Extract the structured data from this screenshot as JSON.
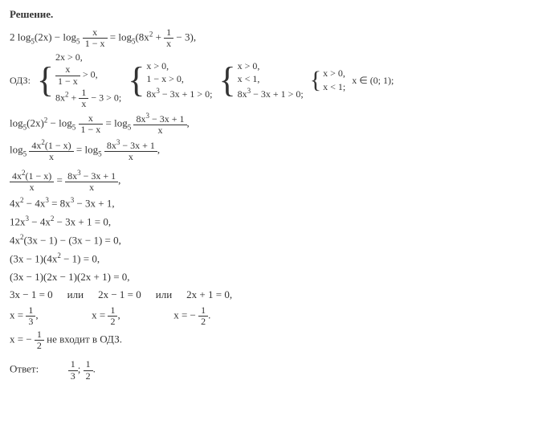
{
  "heading": "Решение.",
  "eq1_lhs1": "2 log",
  "eq1_sub": "5",
  "eq1_paren1": "(2x) − log",
  "eq1_frac1_num": "x",
  "eq1_frac1_den": "1 − x",
  "eq1_eq": " = log",
  "eq1_paren2_a": "(8x",
  "eq1_sup2": "2",
  "eq1_plus": " + ",
  "eq1_frac2_num": "1",
  "eq1_frac2_den": "x",
  "eq1_tail": " − 3),",
  "odz_label": "ОДЗ:",
  "odz1_r1": "2x > 0,",
  "odz1_r2_num": "x",
  "odz1_r2_den": "1 − x",
  "odz1_r2_tail": " > 0,",
  "odz1_r3_a": "8x",
  "odz1_r3_sup": "2",
  "odz1_r3_b": " + ",
  "odz1_r3_num": "1",
  "odz1_r3_den": "x",
  "odz1_r3_tail": " − 3 > 0;",
  "odz2_r1": "x > 0,",
  "odz2_r2": "1 − x > 0,",
  "odz2_r3_a": "8x",
  "odz2_r3_sup": "3",
  "odz2_r3_b": " − 3x + 1 > 0;",
  "odz3_r1": "x > 0,",
  "odz3_r2": "x < 1,",
  "odz3_r3_a": "8x",
  "odz3_r3_sup": "3",
  "odz3_r3_b": " − 3x + 1 > 0;",
  "odz4_r1": "x > 0,",
  "odz4_r2": "x < 1;",
  "odz_interval": "x ∈ (0; 1);",
  "eq2_a": "log",
  "eq2_paren": "(2x)",
  "eq2_sup": "2",
  "eq2_b": " − log",
  "eq2_frac1_num": "x",
  "eq2_frac1_den": "1 − x",
  "eq2_c": " = log",
  "eq2_frac2_num_a": "8x",
  "eq2_frac2_num_sup": "3",
  "eq2_frac2_num_b": " − 3x + 1",
  "eq2_frac2_den": "x",
  "eq2_tail": ",",
  "eq3_a": "log",
  "eq3_frac1_num_a": "4x",
  "eq3_frac1_num_sup": "2",
  "eq3_frac1_num_b": "(1 − x)",
  "eq3_frac1_den": "x",
  "eq3_b": " = log",
  "eq3_frac2_num_a": "8x",
  "eq3_frac2_num_sup": "3",
  "eq3_frac2_num_b": " − 3x + 1",
  "eq3_frac2_den": "x",
  "eq3_tail": ",",
  "eq4_frac1_num_a": "4x",
  "eq4_frac1_num_sup": "2",
  "eq4_frac1_num_b": "(1 − x)",
  "eq4_frac1_den": "x",
  "eq4_mid": " = ",
  "eq4_frac2_num_a": "8x",
  "eq4_frac2_num_sup": "3",
  "eq4_frac2_num_b": " − 3x + 1",
  "eq4_frac2_den": "x",
  "eq4_tail": ",",
  "eq5_a": "4x",
  "eq5_sup1": "2",
  "eq5_b": " − 4x",
  "eq5_sup2": "3",
  "eq5_c": " = 8x",
  "eq5_sup3": "3",
  "eq5_d": " − 3x + 1,",
  "eq6_a": "12x",
  "eq6_sup1": "3",
  "eq6_b": " − 4x",
  "eq6_sup2": "2",
  "eq6_c": " − 3x + 1 = 0,",
  "eq7_a": "4x",
  "eq7_sup1": "2",
  "eq7_b": "(3x − 1) − (3x − 1) = 0,",
  "eq8_a": "(3x − 1)(4x",
  "eq8_sup": "2",
  "eq8_b": " − 1) = 0,",
  "eq9": "(3x − 1)(2x − 1)(2x + 1) = 0,",
  "eq10_a": "3x − 1 = 0",
  "or": "или",
  "eq10_b": "2x − 1 = 0",
  "eq10_c": "2x + 1 = 0,",
  "sol1_a": "x = ",
  "sol1_num": "1",
  "sol1_den": "3",
  "sol1_tail": ",",
  "sol2_a": "x = ",
  "sol2_num": "1",
  "sol2_den": "2",
  "sol2_tail": ",",
  "sol3_a": "x = − ",
  "sol3_num": "1",
  "sol3_den": "2",
  "sol3_tail": ".",
  "excl_a": "x = − ",
  "excl_num": "1",
  "excl_den": "2",
  "excl_tail": "  не входит в ОДЗ.",
  "ans_label": "Ответ:",
  "ans_frac1_num": "1",
  "ans_frac1_den": "3",
  "ans_sep": "; ",
  "ans_frac2_num": "1",
  "ans_frac2_den": "2",
  "ans_tail": "."
}
